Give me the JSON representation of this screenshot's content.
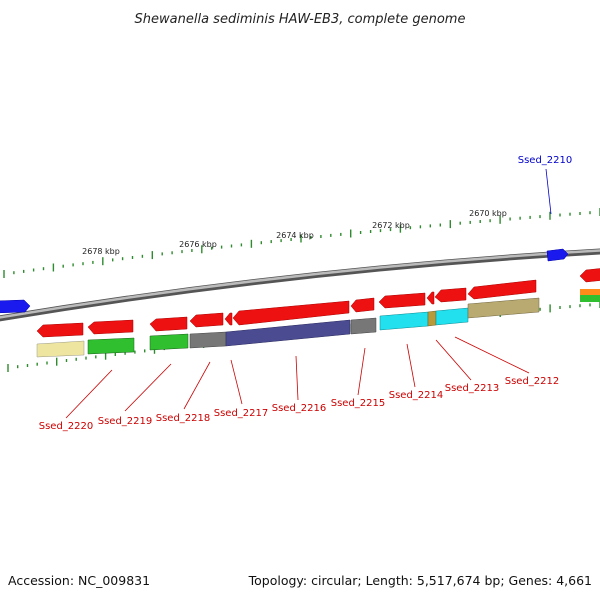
{
  "title": "Shewanella sediminis HAW-EB3, complete genome",
  "footer": {
    "accession": "Accession: NC_009831",
    "summary": "Topology: circular; Length: 5,517,674 bp; Genes: 4,661"
  },
  "colors": {
    "backbone": "#888888",
    "tick": "#2e8b2e",
    "forward_gene": "#ee1111",
    "reverse_gene_outer": "#1a1aee",
    "label_red": "#cc0000",
    "label_blue": "#0000cc"
  },
  "kbp_ticks": [
    "2678 kbp",
    "2676 kbp",
    "2674 kbp",
    "2672 kbp",
    "2670 kbp"
  ],
  "gene_labels": [
    {
      "id": "top",
      "text": "Ssed_2210",
      "color": "blue"
    },
    {
      "id": "2220",
      "text": "Ssed_2220",
      "color": "red"
    },
    {
      "id": "2219",
      "text": "Ssed_2219",
      "color": "red"
    },
    {
      "id": "2218",
      "text": "Ssed_2218",
      "color": "red"
    },
    {
      "id": "2217",
      "text": "Ssed_2217",
      "color": "red"
    },
    {
      "id": "2216",
      "text": "Ssed_2216",
      "color": "red"
    },
    {
      "id": "2215",
      "text": "Ssed_2215",
      "color": "red"
    },
    {
      "id": "2214",
      "text": "Ssed_2214",
      "color": "red"
    },
    {
      "id": "2213",
      "text": "Ssed_2213",
      "color": "red"
    },
    {
      "id": "2212",
      "text": "Ssed_2212",
      "color": "red"
    }
  ]
}
